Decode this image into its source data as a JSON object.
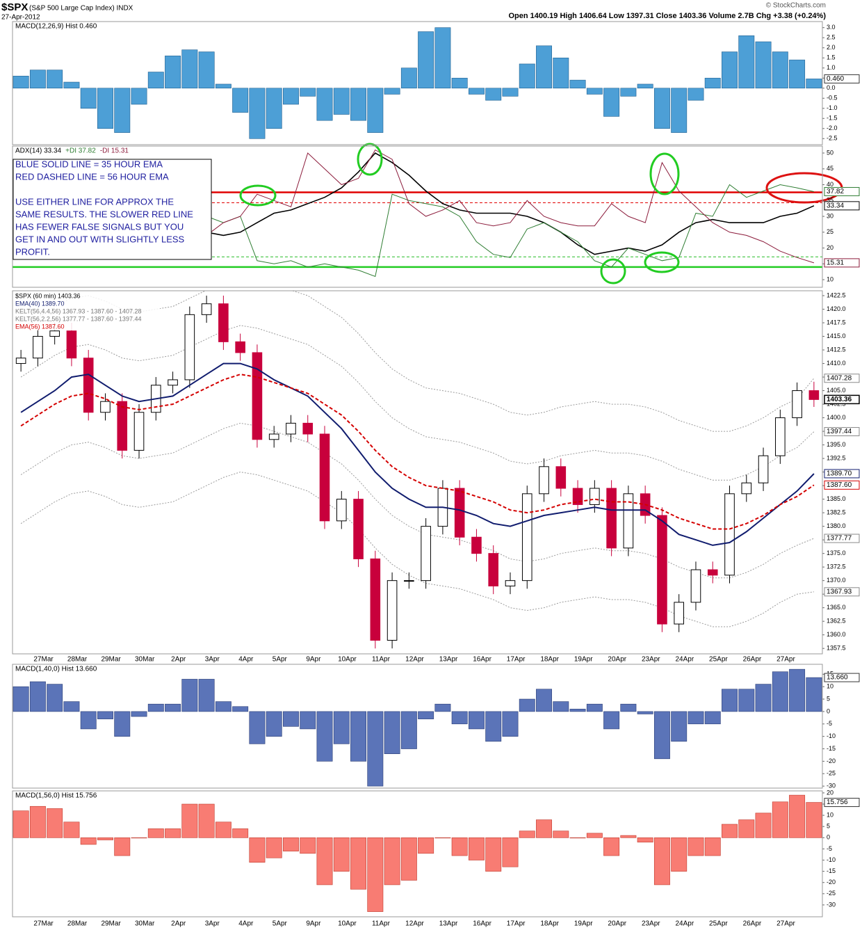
{
  "header": {
    "symbol": "$SPX",
    "name": "(S&P 500 Large Cap Index) INDX",
    "date": "27-Apr-2012",
    "quote": "Open 1400.19 High 1406.64 Low 1397.31 Close 1403.36 Volume 2.7B Chg +3.38 (+0.24%)",
    "credit": "© StockCharts.com"
  },
  "chart_data": [
    {
      "type": "bar",
      "ylim": [
        -2.8,
        3.3
      ],
      "yticks": [
        {
          "value": 3,
          "label": "3.0"
        },
        2.5,
        {
          "value": 2,
          "label": "2.0"
        },
        1.5,
        {
          "value": 1,
          "label": "1.0"
        },
        0.5,
        {
          "value": 0,
          "label": "0.0"
        },
        -0.5,
        {
          "value": -1,
          "label": "-1.0"
        },
        -1.5,
        {
          "value": -2,
          "label": "-2.0"
        },
        -2.5
      ],
      "series": [
        {
          "name": "MACD(12,26,9) Hist 0.460",
          "color": "#4d9fd6",
          "edge_color": "#1f5f8f",
          "tag": "0.460",
          "values": [
            0.6,
            0.9,
            0.9,
            0.3,
            -1.0,
            -2.0,
            -2.2,
            -0.8,
            0.8,
            1.6,
            1.9,
            1.8,
            0.2,
            -1.2,
            -2.5,
            -2.0,
            -0.8,
            -0.4,
            -1.6,
            -1.3,
            -1.6,
            -2.2,
            -0.3,
            1.0,
            2.8,
            3.0,
            0.5,
            -0.3,
            -0.6,
            -0.4,
            1.2,
            2.1,
            1.5,
            0.4,
            -0.3,
            -1.4,
            -0.4,
            0.2,
            -2.0,
            -2.2,
            -0.6,
            0.5,
            1.8,
            2.6,
            2.3,
            1.8,
            1.4,
            0.46
          ]
        }
      ]
    },
    {
      "type": "line",
      "ylim": [
        7.6,
        52.2
      ],
      "yticks": [
        50,
        45,
        40,
        35,
        30,
        25,
        20,
        15,
        10
      ],
      "series": [
        {
          "name": "ADX(14) 33.34",
          "color": "#000000",
          "width": 1.6,
          "values": [
            27,
            28,
            28,
            27,
            26,
            25,
            25,
            26,
            27,
            27,
            26,
            25,
            24,
            25,
            28,
            31,
            32,
            34,
            36,
            39,
            44,
            50,
            47,
            43,
            38,
            34,
            32,
            31,
            31,
            31,
            30,
            28,
            25,
            21,
            18,
            19,
            20,
            19,
            21,
            25,
            28,
            29,
            28,
            28,
            28,
            30,
            31,
            33.34
          ]
        },
        {
          "name": "+DI 37.82",
          "color": "#2e7d32",
          "width": 1,
          "values": [
            20,
            22,
            25,
            20,
            18,
            17,
            18,
            22,
            26,
            28,
            32,
            30,
            28,
            30,
            16,
            15,
            16,
            14,
            15,
            14,
            13,
            11,
            37,
            35,
            34,
            33,
            30,
            22,
            18,
            17,
            26,
            28,
            25,
            22,
            16,
            14,
            20,
            18,
            16,
            17,
            31,
            30,
            40,
            36,
            38,
            40,
            39,
            37.82
          ]
        },
        {
          "name": "-DI 15.31",
          "color": "#8b1a3a",
          "width": 1,
          "values": [
            25,
            22,
            20,
            28,
            35,
            34,
            38,
            32,
            26,
            24,
            22,
            24,
            28,
            30,
            37,
            35,
            33,
            50,
            45,
            40,
            42,
            51,
            48,
            34,
            30,
            32,
            35,
            28,
            27,
            28,
            35,
            30,
            28,
            27,
            27,
            34,
            30,
            28,
            47,
            38,
            33,
            28,
            25,
            24,
            22,
            19,
            17,
            15.31
          ]
        }
      ],
      "hlines": [
        {
          "value": 37.6,
          "color": "#e00000",
          "dash": false
        },
        {
          "value": 34.3,
          "color": "#e00000",
          "dash": true
        },
        {
          "value": 17.2,
          "color": "#22bb22",
          "dash": true
        },
        {
          "value": 14,
          "color": "#22cc22",
          "dash": false
        }
      ],
      "annotation_lines": [
        "BLUE SOLID LINE = 35 HOUR EMA",
        "RED DASHED LINE = 56 HOUR EMA",
        "USE EITHER LINE FOR APPROX THE",
        "SAME RESULTS.  THE SLOWER RED LINE",
        "HAS FEWER FALSE SIGNALS BUT YOU",
        "GET IN AND OUT WITH SLIGHTLY LESS",
        "PROFIT."
      ]
    },
    {
      "type": "candlestick",
      "title": "$SPX (60 min) 1403.36",
      "categories": [
        null,
        null,
        "27Mar",
        null,
        "28Mar",
        null,
        "29Mar",
        null,
        "30Mar",
        null,
        "2Apr",
        null,
        "3Apr",
        null,
        "4Apr",
        null,
        "5Apr",
        null,
        "9Apr",
        null,
        "10Apr",
        null,
        "11Apr",
        null,
        "12Apr",
        null,
        "13Apr",
        null,
        "16Apr",
        null,
        "17Apr",
        null,
        "18Apr",
        null,
        "19Apr",
        null,
        "20Apr",
        null,
        "23Apr",
        null,
        "24Apr",
        null,
        "25Apr",
        null,
        "26Apr",
        null,
        "27Apr",
        null
      ],
      "ylim": [
        1356.5,
        1423.4
      ],
      "yticks": [
        1357.5,
        {
          "value": 1360,
          "label": "1360.0"
        },
        1362.5,
        {
          "value": 1365,
          "label": "1365.0"
        },
        1367.5,
        {
          "value": 1370,
          "label": "1370.0"
        },
        1372.5,
        {
          "value": 1375,
          "label": "1375.0"
        },
        1377.5,
        {
          "value": 1380,
          "label": "1380.0"
        },
        1382.5,
        {
          "value": 1385,
          "label": "1385.0"
        },
        1387.5,
        {
          "value": 1390,
          "label": "1390.0"
        },
        1392.5,
        {
          "value": 1395,
          "label": "1395.0"
        },
        1397.5,
        {
          "value": 1400,
          "label": "1400.0"
        },
        1402.5,
        {
          "value": 1405,
          "label": "1405.0"
        },
        1407.5,
        {
          "value": 1410,
          "label": "1410.0"
        },
        1412.5,
        {
          "value": 1415,
          "label": "1415.0"
        },
        1417.5,
        {
          "value": 1420,
          "label": "1420.0"
        },
        1422.5
      ],
      "up_color": "#ffffff",
      "down_color": "#c8003c",
      "ohlc": {
        "open": [
          1410,
          1411,
          1415,
          1416,
          1411,
          1401,
          1403,
          1394,
          1401,
          1406,
          1407,
          1419,
          1421,
          1414,
          1412,
          1396,
          1397,
          1399,
          1397,
          1381,
          1385,
          1374,
          1359,
          1370,
          1370,
          1380,
          1387,
          1378,
          1375,
          1369,
          1370,
          1386,
          1391,
          1387,
          1384,
          1387,
          1376,
          1386,
          1382,
          1362,
          1366,
          1372,
          1371,
          1386,
          1388,
          1393,
          1400,
          1405
        ],
        "high": [
          1412.5,
          1416.5,
          1417.5,
          1417.5,
          1412.5,
          1404.5,
          1404.5,
          1402.5,
          1407.5,
          1408.5,
          1420.5,
          1422.5,
          1422.5,
          1415.5,
          1413.5,
          1398.5,
          1400.5,
          1400.5,
          1398.5,
          1386.5,
          1386.5,
          1375.5,
          1371.5,
          1371.5,
          1381.5,
          1388.5,
          1388.5,
          1379.5,
          1376.5,
          1371.5,
          1387.5,
          1392.5,
          1392.5,
          1388.5,
          1388.5,
          1388.5,
          1387.5,
          1387.5,
          1383.5,
          1367.5,
          1373.5,
          1373.5,
          1387.5,
          1389.5,
          1394.5,
          1401.5,
          1406.5,
          1406.64
        ],
        "low": [
          1408.5,
          1409.5,
          1413.5,
          1409.5,
          1399.5,
          1399.5,
          1392.5,
          1392.5,
          1399.5,
          1404.5,
          1405.5,
          1417.5,
          1412.5,
          1410.5,
          1394.5,
          1394.5,
          1395.5,
          1395.5,
          1379.5,
          1379.5,
          1372.5,
          1357.5,
          1357.5,
          1368.5,
          1368.5,
          1378.5,
          1376.5,
          1373.5,
          1367.5,
          1367.5,
          1368.5,
          1384.5,
          1385.5,
          1382.5,
          1382.5,
          1374.5,
          1374.5,
          1380.5,
          1360.5,
          1360.5,
          1364.5,
          1369.5,
          1369.5,
          1384.5,
          1386.5,
          1391.5,
          1398.5,
          1402
        ],
        "close": [
          1411,
          1415,
          1416,
          1411,
          1401,
          1403,
          1394,
          1401,
          1406,
          1407,
          1419,
          1421,
          1414,
          1412,
          1396,
          1397,
          1399,
          1397,
          1381,
          1385,
          1374,
          1359,
          1370,
          1370,
          1380,
          1387,
          1378,
          1375,
          1369,
          1370,
          1386,
          1391,
          1387,
          1384,
          1387,
          1376,
          1386,
          1382,
          1362,
          1366,
          1372,
          1371,
          1386,
          1388,
          1393,
          1400,
          1405,
          1403.36
        ]
      },
      "series": [
        {
          "name": "EMA(40) 1389.70",
          "color": "#101c6e",
          "dash": false,
          "tag": "1389.70",
          "values": [
            1401,
            1403,
            1405,
            1407.5,
            1408,
            1406,
            1404,
            1403,
            1403.5,
            1404,
            1406,
            1408,
            1410,
            1410,
            1409,
            1407,
            1405.5,
            1404,
            1401,
            1398,
            1394,
            1390,
            1387,
            1385,
            1383.5,
            1383.5,
            1383,
            1382,
            1380.5,
            1380,
            1381,
            1382,
            1382.5,
            1383,
            1383.5,
            1383,
            1383,
            1383,
            1381,
            1378.5,
            1377.5,
            1376.5,
            1377,
            1379,
            1381.5,
            1384,
            1386.5,
            1389.7
          ]
        },
        {
          "name": "EMA(56) 1387.60",
          "color": "#d40000",
          "dash": true,
          "tag": "1387.60",
          "values": [
            1398.5,
            1400.5,
            1402.5,
            1404,
            1404.5,
            1403.5,
            1402,
            1401.5,
            1402,
            1402.5,
            1404,
            1405.5,
            1407,
            1408,
            1407.5,
            1406.5,
            1405.5,
            1404.5,
            1402.5,
            1400.5,
            1397.5,
            1394,
            1391,
            1389,
            1387.5,
            1387,
            1386.5,
            1385.5,
            1384.5,
            1383,
            1382.5,
            1383,
            1384,
            1384.5,
            1385,
            1384.5,
            1384.5,
            1384,
            1383,
            1381.5,
            1380.5,
            1379.5,
            1379.5,
            1380.5,
            1382,
            1384,
            1385.5,
            1387.6
          ]
        }
      ],
      "keltner": [
        {
          "name": "KELT(56,4.4,56) 1367.93 - 1387.60 - 1407.28",
          "color": "#9a9a9a",
          "upper": [
            1416.5,
            1418.5,
            1420.5,
            1422,
            1422.5,
            1421.5,
            1420,
            1419.5,
            1420,
            1420.5,
            1422,
            1423.5,
            1425,
            1426,
            1425.5,
            1424.5,
            1423.5,
            1422.5,
            1420.5,
            1418.5,
            1415.5,
            1412,
            1409,
            1407,
            1405.5,
            1405,
            1404.5,
            1403.5,
            1402.5,
            1401,
            1400.5,
            1401,
            1402,
            1402.5,
            1403,
            1402.5,
            1402.5,
            1402,
            1401,
            1399.5,
            1398.5,
            1397.5,
            1397.5,
            1398.5,
            1400,
            1402,
            1403.5,
            1407.28
          ],
          "lower": [
            1380.5,
            1382.5,
            1384.5,
            1386,
            1386.5,
            1385.5,
            1384,
            1383.5,
            1384,
            1384.5,
            1386,
            1387.5,
            1389,
            1390,
            1389.5,
            1388.5,
            1387.5,
            1386.5,
            1384.5,
            1382.5,
            1379.5,
            1376,
            1373,
            1371,
            1369.5,
            1369,
            1368.5,
            1367.5,
            1366.5,
            1365,
            1364.5,
            1365,
            1366,
            1366.5,
            1367,
            1366.5,
            1366.5,
            1366,
            1365,
            1363.5,
            1362.5,
            1361.5,
            1361.5,
            1362.5,
            1364,
            1366,
            1367.5,
            1367.93
          ]
        },
        {
          "name": "KELT(56,2.2,56) 1377.77 - 1387.60 - 1397.44",
          "color": "#9a9a9a",
          "upper": [
            1407.5,
            1409.5,
            1411.5,
            1413,
            1413.5,
            1412.5,
            1411,
            1410.5,
            1411,
            1411.5,
            1413,
            1414.5,
            1416,
            1417,
            1416.5,
            1415.5,
            1414.5,
            1413.5,
            1411.5,
            1409.5,
            1406.5,
            1403,
            1400,
            1398,
            1396.5,
            1396,
            1395.5,
            1394.5,
            1393.5,
            1392,
            1391.5,
            1392,
            1393,
            1393.5,
            1394,
            1393.5,
            1393.5,
            1393,
            1392,
            1390.5,
            1389.5,
            1388.5,
            1388.5,
            1389.5,
            1391,
            1393,
            1394.5,
            1397.44
          ],
          "lower": [
            1389.5,
            1391.5,
            1393.5,
            1395,
            1395.5,
            1394.5,
            1393,
            1392.5,
            1393,
            1393.5,
            1395,
            1396.5,
            1398,
            1399,
            1398.5,
            1397.5,
            1396.5,
            1395.5,
            1393.5,
            1391.5,
            1388.5,
            1385,
            1382,
            1380,
            1378.5,
            1378,
            1377.5,
            1376.5,
            1375.5,
            1374,
            1373.5,
            1374,
            1375,
            1375.5,
            1376,
            1375.5,
            1375.5,
            1375,
            1374,
            1372.5,
            1371.5,
            1370.5,
            1370.5,
            1371.5,
            1373,
            1375,
            1376.5,
            1377.77
          ]
        }
      ]
    },
    {
      "type": "bar",
      "ylim": [
        -30.8,
        19
      ],
      "yticks": [
        15,
        10,
        5,
        0,
        -5,
        -10,
        -15,
        -20,
        -25,
        -30
      ],
      "series": [
        {
          "name": "MACD(1,40,0) Hist 13.660",
          "color": "#5b74b8",
          "edge_color": "#2a3d75",
          "tag": "13.660",
          "values": [
            10,
            12,
            11,
            4,
            -7,
            -3,
            -10,
            -2,
            3,
            3,
            13,
            13,
            4,
            2,
            -13,
            -10,
            -6,
            -7,
            -20,
            -13,
            -20,
            -30,
            -17,
            -15,
            -3,
            3,
            -5,
            -7,
            -12,
            -10,
            5,
            9,
            4,
            1,
            3,
            -7,
            3,
            -1,
            -19,
            -12,
            -5,
            -5,
            9,
            9,
            11,
            16,
            17,
            13.66
          ]
        }
      ]
    },
    {
      "type": "bar",
      "ylim": [
        -35.3,
        20.9
      ],
      "yticks": [
        20,
        15,
        10,
        5,
        0,
        -5,
        -10,
        -15,
        -20,
        -25,
        -30
      ],
      "series": [
        {
          "name": "MACD(1,56,0) Hist 15.756",
          "color": "#f87c73",
          "edge_color": "#c0392b",
          "values": [
            12,
            14,
            13,
            7,
            -3,
            -1,
            -8,
            0,
            4,
            4,
            15,
            15,
            7,
            4,
            -11,
            -9,
            -6,
            -7,
            -21,
            -15,
            -23,
            -33,
            -21,
            -19,
            -7,
            0,
            -8,
            -10,
            -15,
            -13,
            3,
            8,
            3,
            0,
            2,
            -8,
            1,
            -2,
            -21,
            -15,
            -8,
            -8,
            6,
            8,
            11,
            16,
            19,
            15.756
          ]
        }
      ]
    }
  ]
}
